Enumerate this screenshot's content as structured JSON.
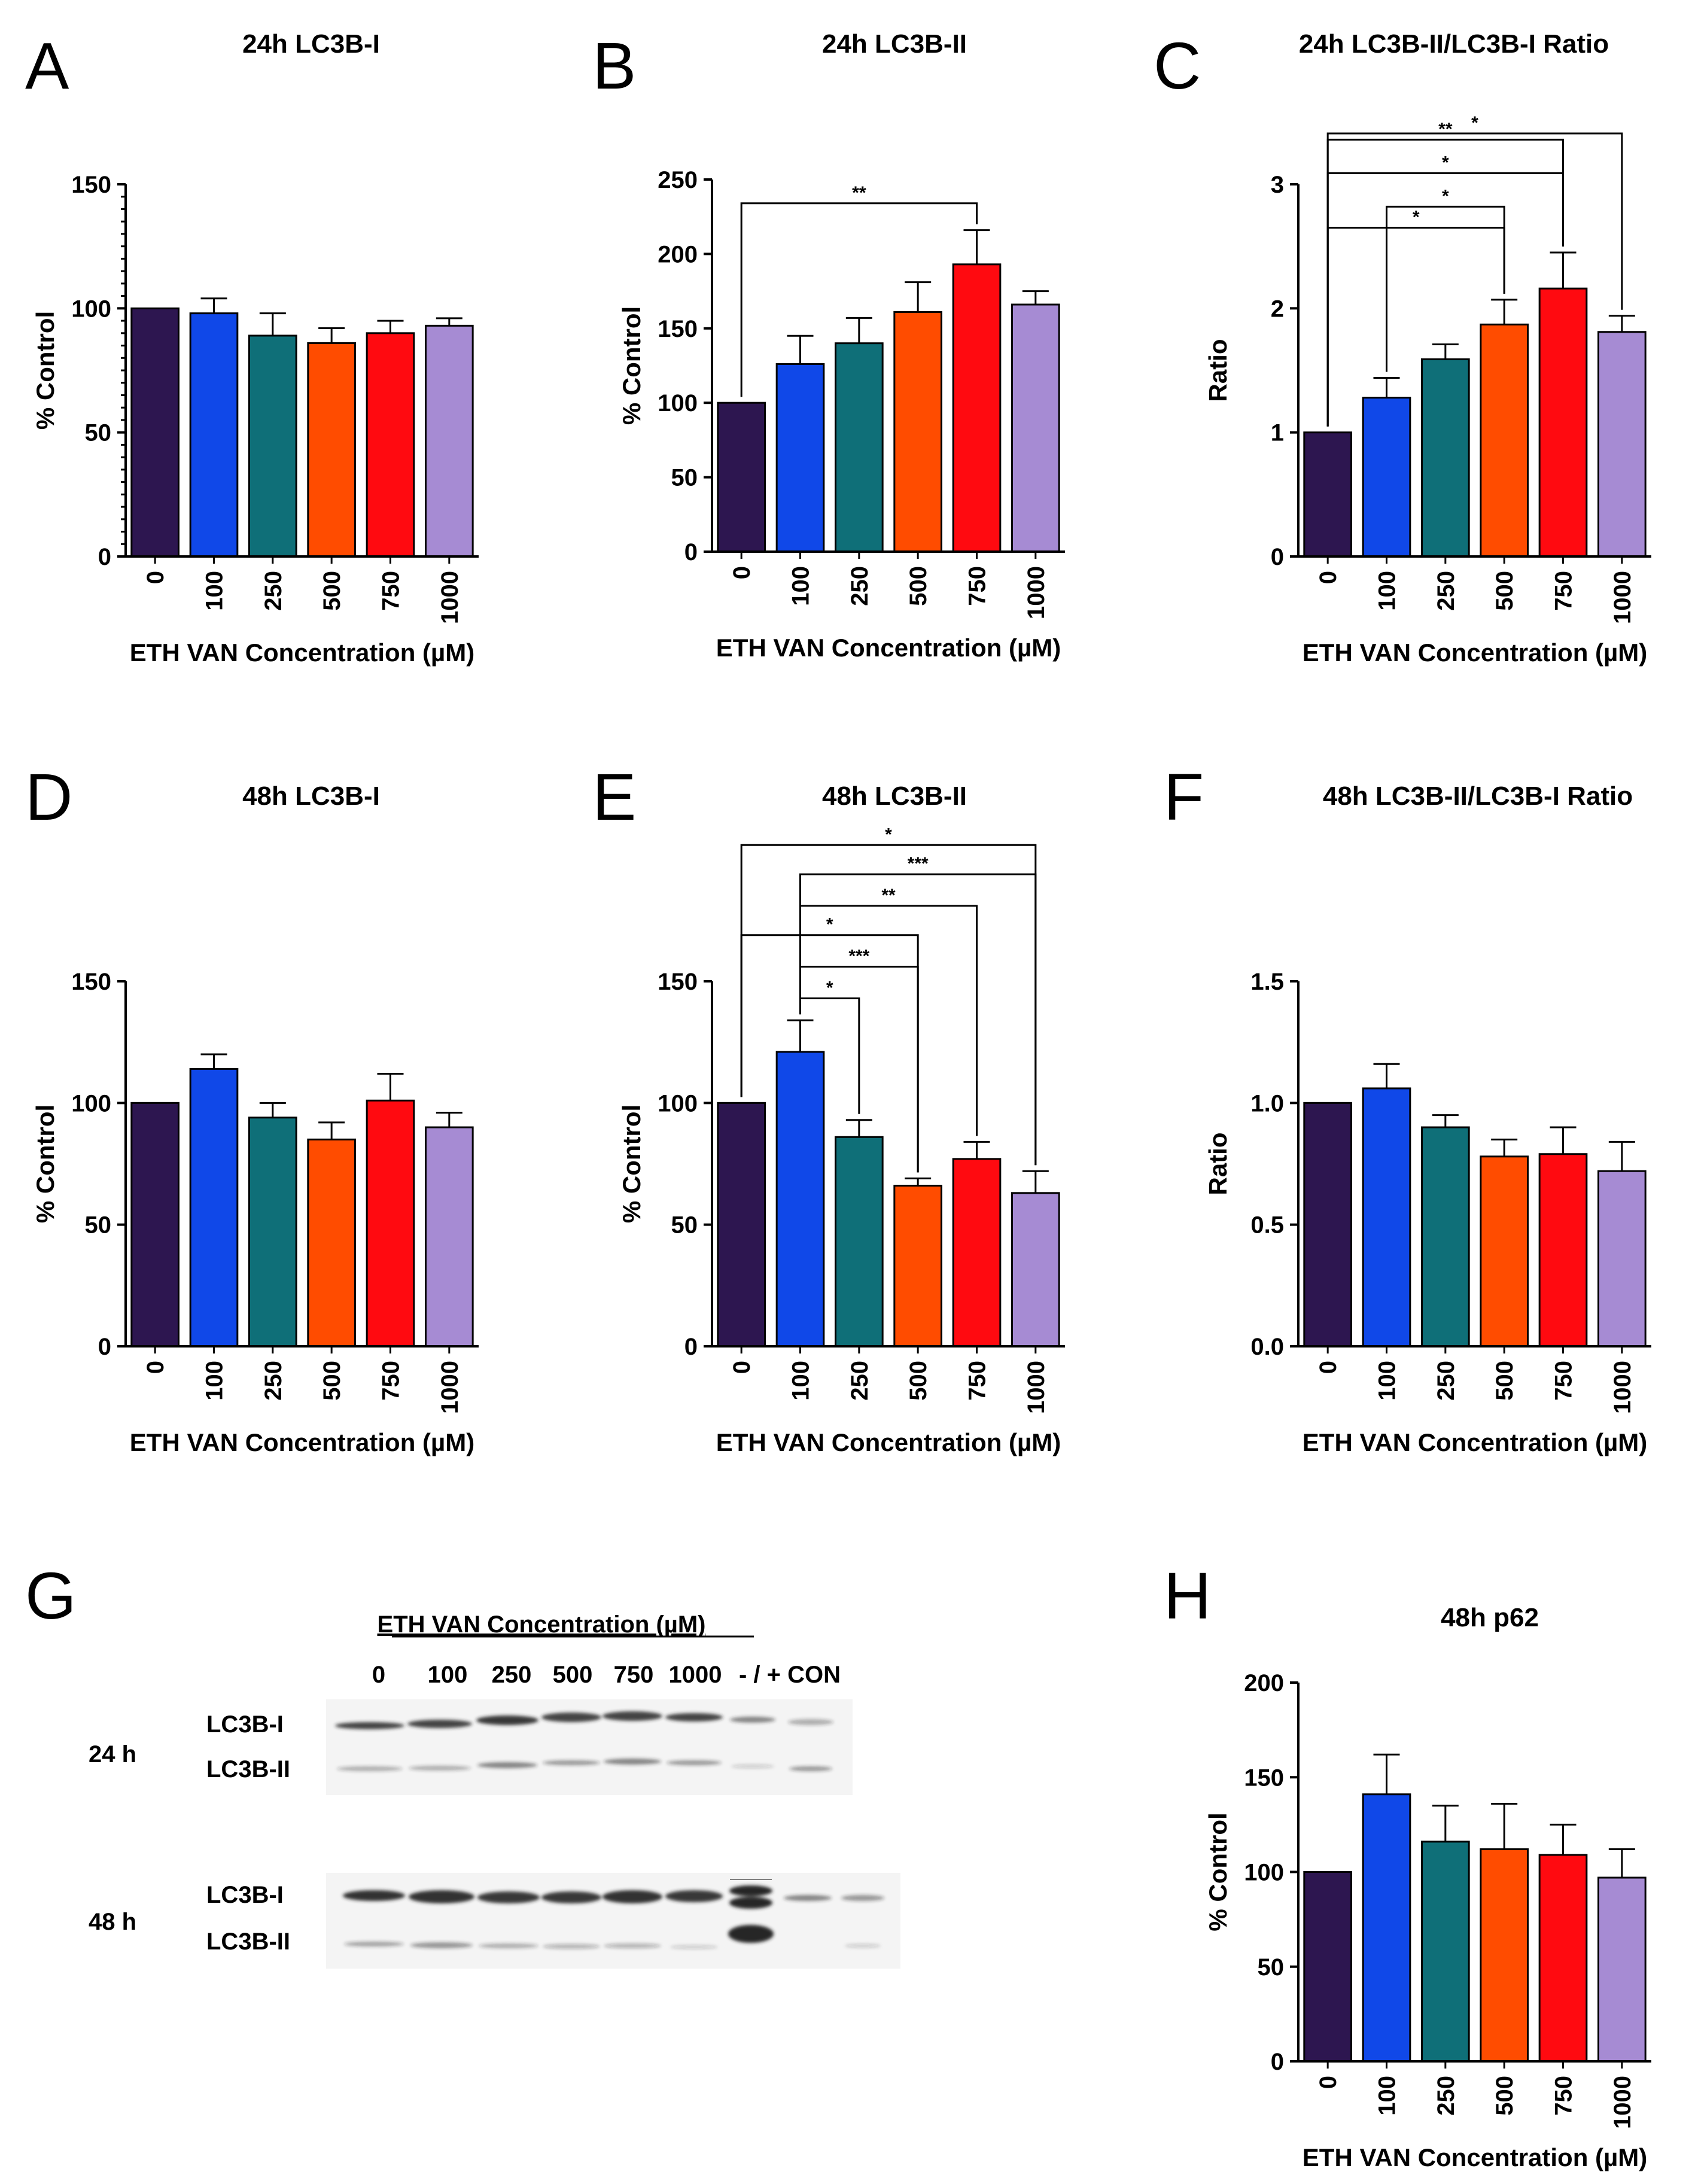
{
  "colors": [
    "#2d1650",
    "#1048e8",
    "#0f6f78",
    "#ff4c00",
    "#ff0a10",
    "#a68bd3"
  ],
  "panels": {
    "A": {
      "letter": "A"
    },
    "B": {
      "letter": "B"
    },
    "C": {
      "letter": "C"
    },
    "D": {
      "letter": "D"
    },
    "E": {
      "letter": "E"
    },
    "F": {
      "letter": "F"
    },
    "G": {
      "letter": "G"
    },
    "H": {
      "letter": "H"
    }
  },
  "chart_data": [
    {
      "id": "A",
      "type": "bar",
      "title": "24h LC3B-I",
      "xlabel": "ETH VAN Concentration (µM)",
      "ylabel": "% Control",
      "categories": [
        "0",
        "100",
        "250",
        "500",
        "750",
        "1000"
      ],
      "values": [
        100,
        98,
        89,
        86,
        90,
        93
      ],
      "errors": [
        0,
        6,
        9,
        6,
        5,
        3
      ],
      "ylim": [
        0,
        150
      ],
      "yticks": [
        "0",
        "50",
        "100",
        "150"
      ],
      "minor_ticks": 10,
      "significance": []
    },
    {
      "id": "B",
      "type": "bar",
      "title": "24h LC3B-II",
      "xlabel": "ETH VAN Concentration (µM)",
      "ylabel": "% Control",
      "categories": [
        "0",
        "100",
        "250",
        "500",
        "750",
        "1000"
      ],
      "values": [
        100,
        126,
        140,
        161,
        193,
        166
      ],
      "errors": [
        0,
        19,
        17,
        20,
        23,
        9
      ],
      "ylim": [
        0,
        250
      ],
      "yticks": [
        "0",
        "50",
        "100",
        "150",
        "200",
        "250"
      ],
      "minor_ticks": 0,
      "significance": [
        {
          "from": 0,
          "to": 4,
          "label": "**",
          "y": 234
        }
      ]
    },
    {
      "id": "C",
      "type": "bar",
      "title": "24h LC3B-II/LC3B-I Ratio",
      "xlabel": "ETH VAN Concentration (µM)",
      "ylabel": "Ratio",
      "categories": [
        "0",
        "100",
        "250",
        "500",
        "750",
        "1000"
      ],
      "values": [
        1.0,
        1.28,
        1.59,
        1.87,
        2.16,
        1.81
      ],
      "errors": [
        0,
        0.16,
        0.12,
        0.2,
        0.29,
        0.13
      ],
      "ylim": [
        0,
        3
      ],
      "yticks": [
        "0",
        "1",
        "2",
        "3"
      ],
      "minor_ticks": 0,
      "significance": [
        {
          "from": 1,
          "to": 3,
          "label": "*",
          "y": 2.82
        },
        {
          "from": 0,
          "to": 3,
          "label": "*",
          "y": 2.65
        },
        {
          "from": 0,
          "to": 4,
          "label": "*",
          "y": 3.09
        },
        {
          "from": 0,
          "to": 4,
          "label": "**",
          "y": 3.36
        },
        {
          "from": 0,
          "to": 5,
          "label": "*",
          "y": 3.41
        }
      ]
    },
    {
      "id": "D",
      "type": "bar",
      "title": "48h LC3B-I",
      "xlabel": "ETH VAN Concentration (µM)",
      "ylabel": "% Control",
      "categories": [
        "0",
        "100",
        "250",
        "500",
        "750",
        "1000"
      ],
      "values": [
        100,
        114,
        94,
        85,
        101,
        90
      ],
      "errors": [
        0,
        6,
        6,
        7,
        11,
        6
      ],
      "ylim": [
        0,
        150
      ],
      "yticks": [
        "0",
        "50",
        "100",
        "150"
      ],
      "minor_ticks": 0,
      "significance": []
    },
    {
      "id": "E",
      "type": "bar",
      "title": "48h LC3B-II",
      "xlabel": "ETH VAN Concentration (µM)",
      "ylabel": "% Control",
      "categories": [
        "0",
        "100",
        "250",
        "500",
        "750",
        "1000"
      ],
      "values": [
        100,
        121,
        86,
        66,
        77,
        63
      ],
      "errors": [
        0,
        13,
        7,
        3,
        7,
        9
      ],
      "ylim": [
        0,
        150
      ],
      "yticks": [
        "0",
        "50",
        "100",
        "150"
      ],
      "minor_ticks": 0,
      "significance": [
        {
          "from": 1,
          "to": 2,
          "label": "*",
          "y": 143
        },
        {
          "from": 1,
          "to": 3,
          "label": "***",
          "y": 156
        },
        {
          "from": 0,
          "to": 3,
          "label": "*",
          "y": 169
        },
        {
          "from": 1,
          "to": 4,
          "label": "**",
          "y": 181
        },
        {
          "from": 1,
          "to": 5,
          "label": "***",
          "y": 194
        },
        {
          "from": 0,
          "to": 5,
          "label": "*",
          "y": 206
        }
      ]
    },
    {
      "id": "F",
      "type": "bar",
      "title": "48h LC3B-II/LC3B-I Ratio",
      "xlabel": "ETH VAN Concentration (µM)",
      "ylabel": "Ratio",
      "categories": [
        "0",
        "100",
        "250",
        "500",
        "750",
        "1000"
      ],
      "values": [
        1.0,
        1.06,
        0.9,
        0.78,
        0.79,
        0.72
      ],
      "errors": [
        0,
        0.1,
        0.05,
        0.07,
        0.11,
        0.12
      ],
      "ylim": [
        0,
        1.5
      ],
      "yticks": [
        "0.0",
        "0.5",
        "1.0",
        "1.5"
      ],
      "minor_ticks": 0,
      "significance": []
    },
    {
      "id": "H",
      "type": "bar",
      "title": "48h p62",
      "xlabel": "ETH VAN Concentration (µM)",
      "ylabel": "% Control",
      "categories": [
        "0",
        "100",
        "250",
        "500",
        "750",
        "1000"
      ],
      "values": [
        100,
        141,
        116,
        112,
        109,
        97
      ],
      "errors": [
        0,
        21,
        19,
        24,
        16,
        15
      ],
      "ylim": [
        0,
        200
      ],
      "yticks": [
        "0",
        "50",
        "100",
        "150",
        "200"
      ],
      "minor_ticks": 0,
      "significance": []
    }
  ],
  "blot": {
    "header": "ETH VAN Concentration (µM)",
    "lanes": [
      "0",
      "100",
      "250",
      "500",
      "750",
      "1000"
    ],
    "controls_label": "- / + CON",
    "rows": [
      {
        "time": "24 h",
        "bands": [
          "LC3B-I",
          "LC3B-II"
        ]
      },
      {
        "time": "48 h",
        "bands": [
          "LC3B-I",
          "LC3B-II"
        ]
      }
    ]
  }
}
